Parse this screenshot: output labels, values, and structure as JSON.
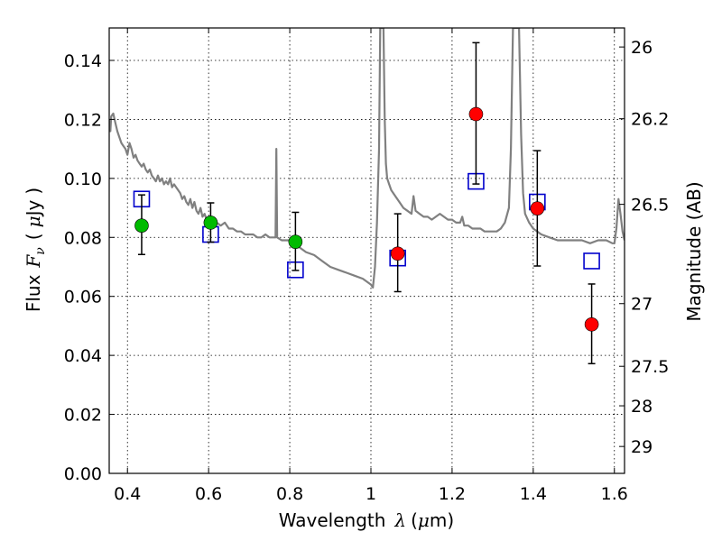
{
  "chart_data": {
    "type": "scatter",
    "xlabel": {
      "text": "Wavelength",
      "symbol": "λ",
      "unit_open": "(",
      "unit_mu": "μ",
      "unit_rest": "m)"
    },
    "ylabel": {
      "text": "Flux",
      "symbol": "F",
      "subscript": "ν",
      "unit_open": "(",
      "unit_mu": "μ",
      "unit_rest": "Jy",
      "unit_close": ")"
    },
    "y2label": "Magnitude (AB)",
    "xlim": [
      0.355,
      1.625
    ],
    "ylim": [
      0.0,
      0.151
    ],
    "grid": true,
    "x_ticks": [
      0.4,
      0.6,
      0.8,
      1.0,
      1.2,
      1.4,
      1.6
    ],
    "x_tick_labels": [
      "0.4",
      "0.6",
      "0.8",
      "1",
      "1.2",
      "1.4",
      "1.6"
    ],
    "y_ticks": [
      0.0,
      0.02,
      0.04,
      0.06,
      0.08,
      0.1,
      0.12,
      0.14
    ],
    "y_tick_labels": [
      "0.00",
      "0.02",
      "0.04",
      "0.06",
      "0.08",
      "0.10",
      "0.12",
      "0.14"
    ],
    "y2_ticks": [
      {
        "mag": 26.0,
        "label": "26"
      },
      {
        "mag": 26.2,
        "label": "26.2"
      },
      {
        "mag": 26.5,
        "label": "26.5"
      },
      {
        "mag": 27.0,
        "label": "27"
      },
      {
        "mag": 27.5,
        "label": "27.5"
      },
      {
        "mag": 28.0,
        "label": "28"
      },
      {
        "mag": 29.0,
        "label": "29"
      }
    ],
    "model_spectrum": {
      "color": "#808080",
      "points": [
        [
          0.355,
          0.12
        ],
        [
          0.358,
          0.116
        ],
        [
          0.36,
          0.121
        ],
        [
          0.365,
          0.122
        ],
        [
          0.37,
          0.119
        ],
        [
          0.375,
          0.116
        ],
        [
          0.38,
          0.114
        ],
        [
          0.385,
          0.112
        ],
        [
          0.39,
          0.111
        ],
        [
          0.395,
          0.11
        ],
        [
          0.4,
          0.108
        ],
        [
          0.405,
          0.112
        ],
        [
          0.41,
          0.11
        ],
        [
          0.415,
          0.107
        ],
        [
          0.42,
          0.108
        ],
        [
          0.425,
          0.106
        ],
        [
          0.43,
          0.105
        ],
        [
          0.435,
          0.104
        ],
        [
          0.44,
          0.105
        ],
        [
          0.445,
          0.103
        ],
        [
          0.45,
          0.102
        ],
        [
          0.455,
          0.103
        ],
        [
          0.46,
          0.101
        ],
        [
          0.465,
          0.1
        ],
        [
          0.47,
          0.099
        ],
        [
          0.475,
          0.101
        ],
        [
          0.48,
          0.099
        ],
        [
          0.485,
          0.1
        ],
        [
          0.49,
          0.098
        ],
        [
          0.495,
          0.099
        ],
        [
          0.5,
          0.098
        ],
        [
          0.505,
          0.1
        ],
        [
          0.51,
          0.097
        ],
        [
          0.515,
          0.098
        ],
        [
          0.52,
          0.097
        ],
        [
          0.525,
          0.096
        ],
        [
          0.53,
          0.095
        ],
        [
          0.535,
          0.093
        ],
        [
          0.54,
          0.094
        ],
        [
          0.545,
          0.092
        ],
        [
          0.55,
          0.091
        ],
        [
          0.555,
          0.093
        ],
        [
          0.56,
          0.09
        ],
        [
          0.565,
          0.092
        ],
        [
          0.57,
          0.089
        ],
        [
          0.575,
          0.088
        ],
        [
          0.58,
          0.09
        ],
        [
          0.585,
          0.087
        ],
        [
          0.59,
          0.088
        ],
        [
          0.595,
          0.086
        ],
        [
          0.6,
          0.085
        ],
        [
          0.61,
          0.086
        ],
        [
          0.62,
          0.085
        ],
        [
          0.63,
          0.084
        ],
        [
          0.64,
          0.085
        ],
        [
          0.65,
          0.083
        ],
        [
          0.66,
          0.083
        ],
        [
          0.67,
          0.082
        ],
        [
          0.68,
          0.082
        ],
        [
          0.69,
          0.081
        ],
        [
          0.7,
          0.081
        ],
        [
          0.71,
          0.081
        ],
        [
          0.72,
          0.08
        ],
        [
          0.73,
          0.08
        ],
        [
          0.74,
          0.081
        ],
        [
          0.75,
          0.08
        ],
        [
          0.76,
          0.08
        ],
        [
          0.765,
          0.08
        ],
        [
          0.767,
          0.11
        ],
        [
          0.769,
          0.08
        ],
        [
          0.78,
          0.079
        ],
        [
          0.79,
          0.079
        ],
        [
          0.8,
          0.079
        ],
        [
          0.81,
          0.078
        ],
        [
          0.82,
          0.077
        ],
        [
          0.84,
          0.075
        ],
        [
          0.86,
          0.074
        ],
        [
          0.88,
          0.072
        ],
        [
          0.9,
          0.07
        ],
        [
          0.92,
          0.069
        ],
        [
          0.94,
          0.068
        ],
        [
          0.96,
          0.067
        ],
        [
          0.98,
          0.066
        ],
        [
          0.99,
          0.065
        ],
        [
          1.0,
          0.064
        ],
        [
          1.005,
          0.063
        ],
        [
          1.01,
          0.07
        ],
        [
          1.015,
          0.085
        ],
        [
          1.02,
          0.11
        ],
        [
          1.023,
          0.151
        ],
        [
          1.031,
          0.151
        ],
        [
          1.034,
          0.12
        ],
        [
          1.037,
          0.105
        ],
        [
          1.04,
          0.1
        ],
        [
          1.045,
          0.098
        ],
        [
          1.05,
          0.096
        ],
        [
          1.06,
          0.094
        ],
        [
          1.07,
          0.092
        ],
        [
          1.08,
          0.09
        ],
        [
          1.09,
          0.089
        ],
        [
          1.1,
          0.088
        ],
        [
          1.105,
          0.094
        ],
        [
          1.11,
          0.089
        ],
        [
          1.12,
          0.088
        ],
        [
          1.13,
          0.087
        ],
        [
          1.14,
          0.087
        ],
        [
          1.15,
          0.086
        ],
        [
          1.16,
          0.087
        ],
        [
          1.17,
          0.088
        ],
        [
          1.18,
          0.087
        ],
        [
          1.19,
          0.086
        ],
        [
          1.2,
          0.086
        ],
        [
          1.21,
          0.085
        ],
        [
          1.22,
          0.085
        ],
        [
          1.225,
          0.087
        ],
        [
          1.23,
          0.084
        ],
        [
          1.24,
          0.084
        ],
        [
          1.25,
          0.083
        ],
        [
          1.26,
          0.083
        ],
        [
          1.27,
          0.083
        ],
        [
          1.28,
          0.082
        ],
        [
          1.29,
          0.082
        ],
        [
          1.3,
          0.082
        ],
        [
          1.31,
          0.082
        ],
        [
          1.32,
          0.083
        ],
        [
          1.33,
          0.085
        ],
        [
          1.34,
          0.09
        ],
        [
          1.345,
          0.11
        ],
        [
          1.35,
          0.151
        ],
        [
          1.365,
          0.151
        ],
        [
          1.37,
          0.115
        ],
        [
          1.375,
          0.095
        ],
        [
          1.38,
          0.088
        ],
        [
          1.39,
          0.085
        ],
        [
          1.4,
          0.083
        ],
        [
          1.42,
          0.081
        ],
        [
          1.44,
          0.08
        ],
        [
          1.46,
          0.079
        ],
        [
          1.48,
          0.079
        ],
        [
          1.5,
          0.079
        ],
        [
          1.52,
          0.079
        ],
        [
          1.54,
          0.078
        ],
        [
          1.56,
          0.079
        ],
        [
          1.58,
          0.079
        ],
        [
          1.595,
          0.078
        ],
        [
          1.6,
          0.078
        ],
        [
          1.605,
          0.083
        ],
        [
          1.61,
          0.093
        ],
        [
          1.615,
          0.088
        ],
        [
          1.62,
          0.082
        ],
        [
          1.625,
          0.079
        ]
      ]
    },
    "model_boxes": {
      "color": "#0000cc",
      "points": [
        {
          "x": 0.435,
          "y": 0.093
        },
        {
          "x": 0.605,
          "y": 0.081
        },
        {
          "x": 0.814,
          "y": 0.069
        },
        {
          "x": 1.066,
          "y": 0.073
        },
        {
          "x": 1.259,
          "y": 0.099
        },
        {
          "x": 1.41,
          "y": 0.092
        },
        {
          "x": 1.544,
          "y": 0.072
        }
      ]
    },
    "observed": [
      {
        "x": 0.435,
        "y": 0.084,
        "yerr_low": 0.0742,
        "yerr_high": 0.0944,
        "color": "#00bb00"
      },
      {
        "x": 0.605,
        "y": 0.085,
        "yerr_low": 0.0784,
        "yerr_high": 0.0917,
        "color": "#00bb00"
      },
      {
        "x": 0.814,
        "y": 0.0785,
        "yerr_low": 0.0688,
        "yerr_high": 0.0885,
        "color": "#00bb00"
      },
      {
        "x": 1.066,
        "y": 0.0745,
        "yerr_low": 0.0616,
        "yerr_high": 0.088,
        "color": "#ff0000"
      },
      {
        "x": 1.259,
        "y": 0.1218,
        "yerr_low": 0.0981,
        "yerr_high": 0.146,
        "color": "#ff0000"
      },
      {
        "x": 1.41,
        "y": 0.0898,
        "yerr_low": 0.0703,
        "yerr_high": 0.1094,
        "color": "#ff0000"
      },
      {
        "x": 1.544,
        "y": 0.0505,
        "yerr_low": 0.0372,
        "yerr_high": 0.0642,
        "color": "#ff0000"
      }
    ]
  }
}
